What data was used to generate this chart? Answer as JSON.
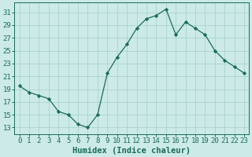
{
  "x": [
    0,
    1,
    2,
    3,
    4,
    5,
    6,
    7,
    8,
    9,
    10,
    11,
    12,
    13,
    14,
    15,
    16,
    17,
    18,
    19,
    20,
    21,
    22,
    23
  ],
  "y": [
    19.5,
    18.5,
    18.0,
    17.5,
    15.5,
    15.0,
    13.5,
    13.0,
    15.0,
    21.5,
    24.0,
    26.0,
    28.5,
    30.0,
    30.5,
    31.5,
    27.5,
    29.5,
    28.5,
    27.5,
    25.0,
    23.5,
    22.5,
    21.5
  ],
  "line_color": "#1a6b5a",
  "marker": "D",
  "marker_size": 2.2,
  "bg_color": "#cceae7",
  "grid_color": "#aad4d0",
  "xlabel": "Humidex (Indice chaleur)",
  "ylabel_ticks": [
    13,
    15,
    17,
    19,
    21,
    23,
    25,
    27,
    29,
    31
  ],
  "xlim": [
    -0.5,
    23.5
  ],
  "ylim": [
    12.0,
    32.5
  ],
  "xlabel_fontsize": 7.5,
  "tick_fontsize": 6.5,
  "tick_color": "#1a6b5a",
  "spine_color": "#1a6b5a"
}
